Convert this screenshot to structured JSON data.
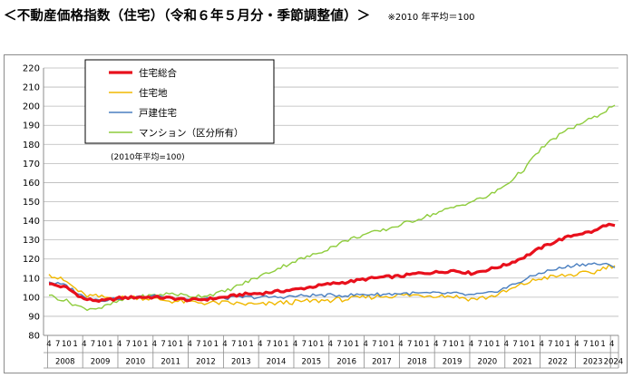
{
  "header": {
    "title": "＜不動産価格指数（住宅）（令和６年５月分・季節調整値）＞",
    "note": "※2010 年平均＝100"
  },
  "chart_data": {
    "type": "line",
    "title": "＜不動産価格指数（住宅）（令和６年５月分・季節調整値）＞",
    "note": "(2010年平均=100)",
    "xlabel": "",
    "ylabel": "",
    "ylim": [
      80,
      220
    ],
    "yticks": [
      80,
      90,
      100,
      110,
      120,
      130,
      140,
      150,
      160,
      170,
      180,
      190,
      200,
      210,
      220
    ],
    "grid": true,
    "legend_position": "top-left",
    "x_start": [
      2008,
      4
    ],
    "x_end": [
      2024,
      5
    ],
    "month_tick_labels": [
      "4",
      "7",
      "10",
      "1"
    ],
    "year_labels": [
      "2008",
      "2009",
      "2010",
      "2011",
      "2012",
      "2013",
      "2014",
      "2015",
      "2016",
      "2017",
      "2018",
      "2019",
      "2020",
      "2021",
      "2022",
      "2023",
      "2024"
    ],
    "final_month_label": "4",
    "series": [
      {
        "name": "住宅総合",
        "color": "#e8101c",
        "points": [
          [
            2008,
            4,
            107
          ],
          [
            2008,
            10,
            105
          ],
          [
            2009,
            4,
            99
          ],
          [
            2009,
            10,
            98
          ],
          [
            2010,
            4,
            99.5
          ],
          [
            2010,
            10,
            100
          ],
          [
            2011,
            4,
            100
          ],
          [
            2011,
            10,
            99.5
          ],
          [
            2012,
            4,
            98.5
          ],
          [
            2012,
            10,
            99
          ],
          [
            2013,
            4,
            100
          ],
          [
            2013,
            10,
            101.5
          ],
          [
            2014,
            4,
            102
          ],
          [
            2014,
            10,
            103
          ],
          [
            2015,
            4,
            104
          ],
          [
            2015,
            10,
            105.5
          ],
          [
            2016,
            4,
            107
          ],
          [
            2016,
            10,
            108
          ],
          [
            2017,
            4,
            109.5
          ],
          [
            2017,
            10,
            110.5
          ],
          [
            2018,
            4,
            111
          ],
          [
            2018,
            10,
            112.5
          ],
          [
            2019,
            4,
            113
          ],
          [
            2019,
            10,
            114
          ],
          [
            2020,
            4,
            112.5
          ],
          [
            2020,
            10,
            114.5
          ],
          [
            2021,
            4,
            117
          ],
          [
            2021,
            10,
            121
          ],
          [
            2022,
            4,
            126
          ],
          [
            2022,
            10,
            130
          ],
          [
            2023,
            4,
            133
          ],
          [
            2023,
            10,
            134.5
          ],
          [
            2024,
            2,
            138
          ],
          [
            2024,
            5,
            137.5
          ]
        ]
      },
      {
        "name": "住宅地",
        "color": "#f0b800",
        "points": [
          [
            2008,
            4,
            112
          ],
          [
            2008,
            10,
            108
          ],
          [
            2009,
            4,
            101
          ],
          [
            2009,
            10,
            100
          ],
          [
            2010,
            4,
            99.5
          ],
          [
            2010,
            10,
            100
          ],
          [
            2011,
            4,
            99
          ],
          [
            2011,
            10,
            98
          ],
          [
            2012,
            4,
            97.5
          ],
          [
            2012,
            10,
            97
          ],
          [
            2013,
            4,
            97
          ],
          [
            2013,
            10,
            96.5
          ],
          [
            2014,
            4,
            96
          ],
          [
            2014,
            10,
            97
          ],
          [
            2015,
            4,
            97.5
          ],
          [
            2015,
            10,
            98
          ],
          [
            2016,
            4,
            98.5
          ],
          [
            2016,
            10,
            99
          ],
          [
            2017,
            4,
            100
          ],
          [
            2017,
            10,
            100.5
          ],
          [
            2018,
            4,
            101
          ],
          [
            2018,
            10,
            101
          ],
          [
            2019,
            4,
            101
          ],
          [
            2019,
            10,
            100.5
          ],
          [
            2020,
            4,
            99
          ],
          [
            2020,
            10,
            100
          ],
          [
            2021,
            4,
            103
          ],
          [
            2021,
            10,
            107
          ],
          [
            2022,
            4,
            110
          ],
          [
            2022,
            10,
            111
          ],
          [
            2023,
            4,
            112
          ],
          [
            2023,
            10,
            113
          ],
          [
            2024,
            2,
            116
          ],
          [
            2024,
            5,
            116.5
          ]
        ]
      },
      {
        "name": "戸建住宅",
        "color": "#4a7fc0",
        "points": [
          [
            2008,
            4,
            108
          ],
          [
            2008,
            10,
            106
          ],
          [
            2009,
            4,
            100
          ],
          [
            2009,
            10,
            98.5
          ],
          [
            2010,
            4,
            99.5
          ],
          [
            2010,
            10,
            100
          ],
          [
            2011,
            4,
            100.5
          ],
          [
            2011,
            10,
            100
          ],
          [
            2012,
            4,
            99
          ],
          [
            2012,
            10,
            99
          ],
          [
            2013,
            4,
            99.5
          ],
          [
            2013,
            10,
            100
          ],
          [
            2014,
            4,
            100
          ],
          [
            2014,
            10,
            100
          ],
          [
            2015,
            4,
            100.5
          ],
          [
            2015,
            10,
            101
          ],
          [
            2016,
            4,
            101
          ],
          [
            2016,
            10,
            101
          ],
          [
            2017,
            4,
            101.5
          ],
          [
            2017,
            10,
            101.5
          ],
          [
            2018,
            4,
            102
          ],
          [
            2018,
            10,
            102
          ],
          [
            2019,
            4,
            102
          ],
          [
            2019,
            10,
            102
          ],
          [
            2020,
            4,
            101
          ],
          [
            2020,
            10,
            102
          ],
          [
            2021,
            4,
            105
          ],
          [
            2021,
            10,
            109
          ],
          [
            2022,
            4,
            113
          ],
          [
            2022,
            10,
            115
          ],
          [
            2023,
            4,
            117
          ],
          [
            2023,
            10,
            117.5
          ],
          [
            2024,
            2,
            117
          ],
          [
            2024,
            5,
            115.5
          ]
        ]
      },
      {
        "name": "マンション（区分所有）",
        "color": "#8ecc3c",
        "points": [
          [
            2008,
            4,
            101
          ],
          [
            2008,
            10,
            98
          ],
          [
            2009,
            4,
            94
          ],
          [
            2009,
            10,
            94.5
          ],
          [
            2010,
            4,
            98
          ],
          [
            2010,
            10,
            100
          ],
          [
            2011,
            4,
            101
          ],
          [
            2011,
            10,
            102
          ],
          [
            2012,
            4,
            100.5
          ],
          [
            2012,
            10,
            101
          ],
          [
            2013,
            4,
            103
          ],
          [
            2013,
            10,
            107
          ],
          [
            2014,
            4,
            111
          ],
          [
            2014,
            10,
            115
          ],
          [
            2015,
            4,
            119
          ],
          [
            2015,
            10,
            122
          ],
          [
            2016,
            4,
            126
          ],
          [
            2016,
            10,
            130
          ],
          [
            2017,
            4,
            133
          ],
          [
            2017,
            10,
            135
          ],
          [
            2018,
            4,
            138
          ],
          [
            2018,
            10,
            141
          ],
          [
            2019,
            4,
            144
          ],
          [
            2019,
            10,
            147
          ],
          [
            2020,
            4,
            150
          ],
          [
            2020,
            10,
            153
          ],
          [
            2021,
            4,
            159
          ],
          [
            2021,
            10,
            167
          ],
          [
            2022,
            4,
            178
          ],
          [
            2022,
            10,
            185
          ],
          [
            2023,
            4,
            190
          ],
          [
            2023,
            10,
            194
          ],
          [
            2024,
            2,
            198
          ],
          [
            2024,
            5,
            200.5
          ]
        ]
      }
    ]
  }
}
